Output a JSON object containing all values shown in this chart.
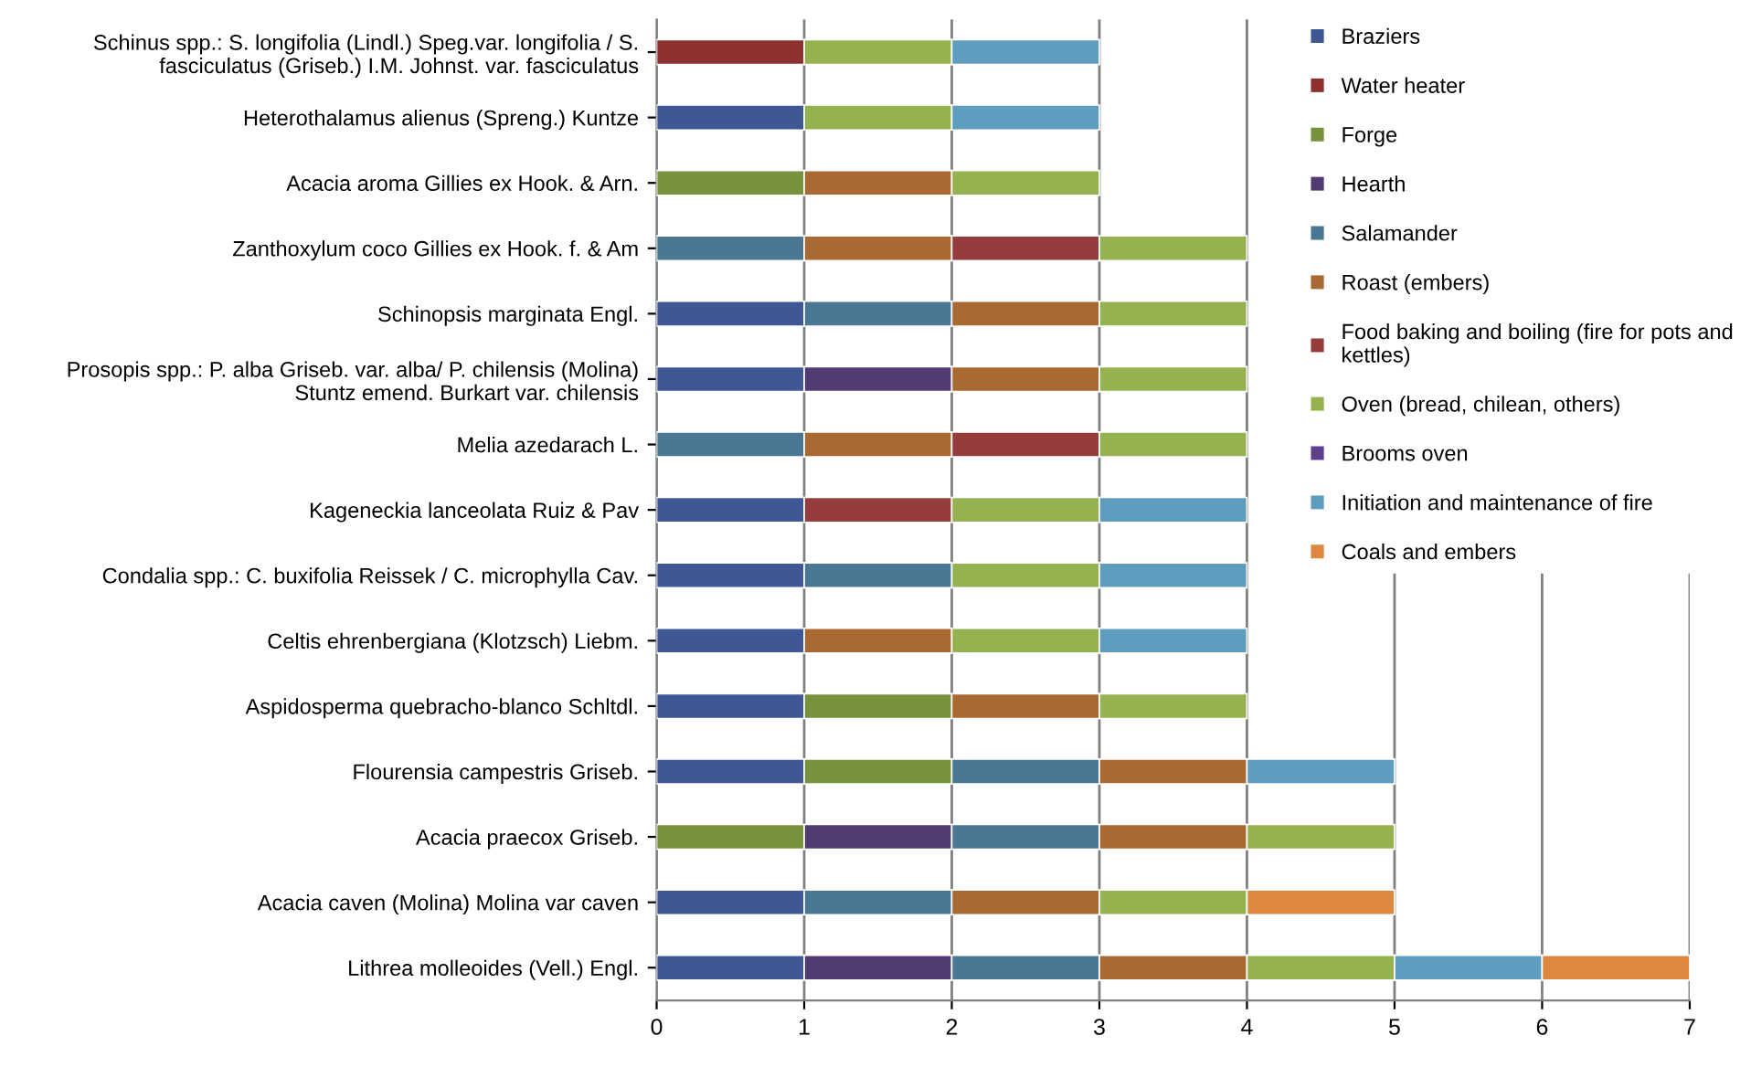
{
  "chart_data": {
    "type": "bar",
    "orientation": "horizontal",
    "stacked": true,
    "categories": [
      "Schinus spp.: S. longifolia (Lindl.) Speg.var. longifolia / S.\nfasciculatus (Griseb.) I.M. Johnst. var. fasciculatus",
      "Heterothalamus alienus (Spreng.) Kuntze",
      "Acacia aroma Gillies ex Hook. & Arn.",
      "Zanthoxylum coco Gillies ex Hook. f. & Am",
      "Schinopsis marginata Engl.",
      "Prosopis spp.: P. alba Griseb. var. alba/ P. chilensis (Molina)\nStuntz emend. Burkart var. chilensis",
      "Melia azedarach L.",
      "Kageneckia lanceolata Ruiz & Pav",
      "Condalia spp.: C. buxifolia Reissek / C. microphylla Cav.",
      "Celtis ehrenbergiana (Klotzsch) Liebm.",
      "Aspidosperma quebracho-blanco Schltdl.",
      "Flourensia campestris Griseb.",
      "Acacia praecox Griseb.",
      "Acacia caven (Molina) Molina var caven",
      "Lithrea molleoides (Vell.) Engl."
    ],
    "series": [
      {
        "name": "Braziers",
        "color": "#3f5795",
        "values": [
          null,
          1,
          null,
          null,
          1,
          1,
          null,
          1,
          1,
          1,
          1,
          1,
          null,
          1,
          1
        ]
      },
      {
        "name": "Water heater",
        "color": "#8c3030",
        "values": [
          1,
          null,
          null,
          null,
          null,
          null,
          null,
          null,
          null,
          null,
          null,
          null,
          null,
          null,
          null
        ]
      },
      {
        "name": "Forge",
        "color": "#76923c",
        "values": [
          null,
          null,
          1,
          null,
          null,
          null,
          null,
          null,
          null,
          null,
          1,
          1,
          1,
          null,
          null
        ]
      },
      {
        "name": "Hearth",
        "color": "#523a72",
        "values": [
          null,
          null,
          null,
          null,
          null,
          1,
          null,
          null,
          null,
          null,
          null,
          null,
          1,
          null,
          1
        ]
      },
      {
        "name": "Salamander",
        "color": "#4a7894",
        "values": [
          null,
          null,
          null,
          1,
          1,
          null,
          1,
          null,
          1,
          null,
          null,
          1,
          1,
          1,
          1
        ]
      },
      {
        "name": "Roast (embers)",
        "color": "#a86a32",
        "values": [
          null,
          null,
          1,
          1,
          1,
          1,
          1,
          null,
          null,
          1,
          1,
          1,
          1,
          1,
          1
        ]
      },
      {
        "name": "Food baking and boiling (fire for pots and\nkettles)",
        "color": "#953d3d",
        "values": [
          null,
          null,
          null,
          1,
          null,
          null,
          1,
          1,
          null,
          null,
          null,
          null,
          null,
          null,
          null
        ]
      },
      {
        "name": "Oven (bread, chilean, others)",
        "color": "#94b350",
        "values": [
          1,
          1,
          1,
          1,
          1,
          1,
          1,
          1,
          1,
          1,
          1,
          null,
          1,
          1,
          1
        ]
      },
      {
        "name": "Brooms oven",
        "color": "#5e3f8e",
        "values": [
          null,
          null,
          null,
          null,
          null,
          null,
          null,
          null,
          null,
          null,
          null,
          null,
          null,
          null,
          null
        ]
      },
      {
        "name": "Initiation and maintenance of fire",
        "color": "#5f9dbf",
        "values": [
          1,
          1,
          null,
          null,
          null,
          null,
          null,
          1,
          1,
          1,
          null,
          1,
          null,
          null,
          1
        ]
      },
      {
        "name": "Coals and embers",
        "color": "#dd8840",
        "values": [
          null,
          null,
          null,
          null,
          null,
          null,
          null,
          null,
          null,
          null,
          null,
          null,
          null,
          1,
          1
        ]
      }
    ],
    "xlim": [
      0,
      7
    ],
    "xticks": [
      0,
      1,
      2,
      3,
      4,
      5,
      6,
      7
    ],
    "grid": "x",
    "legend": "top right"
  }
}
